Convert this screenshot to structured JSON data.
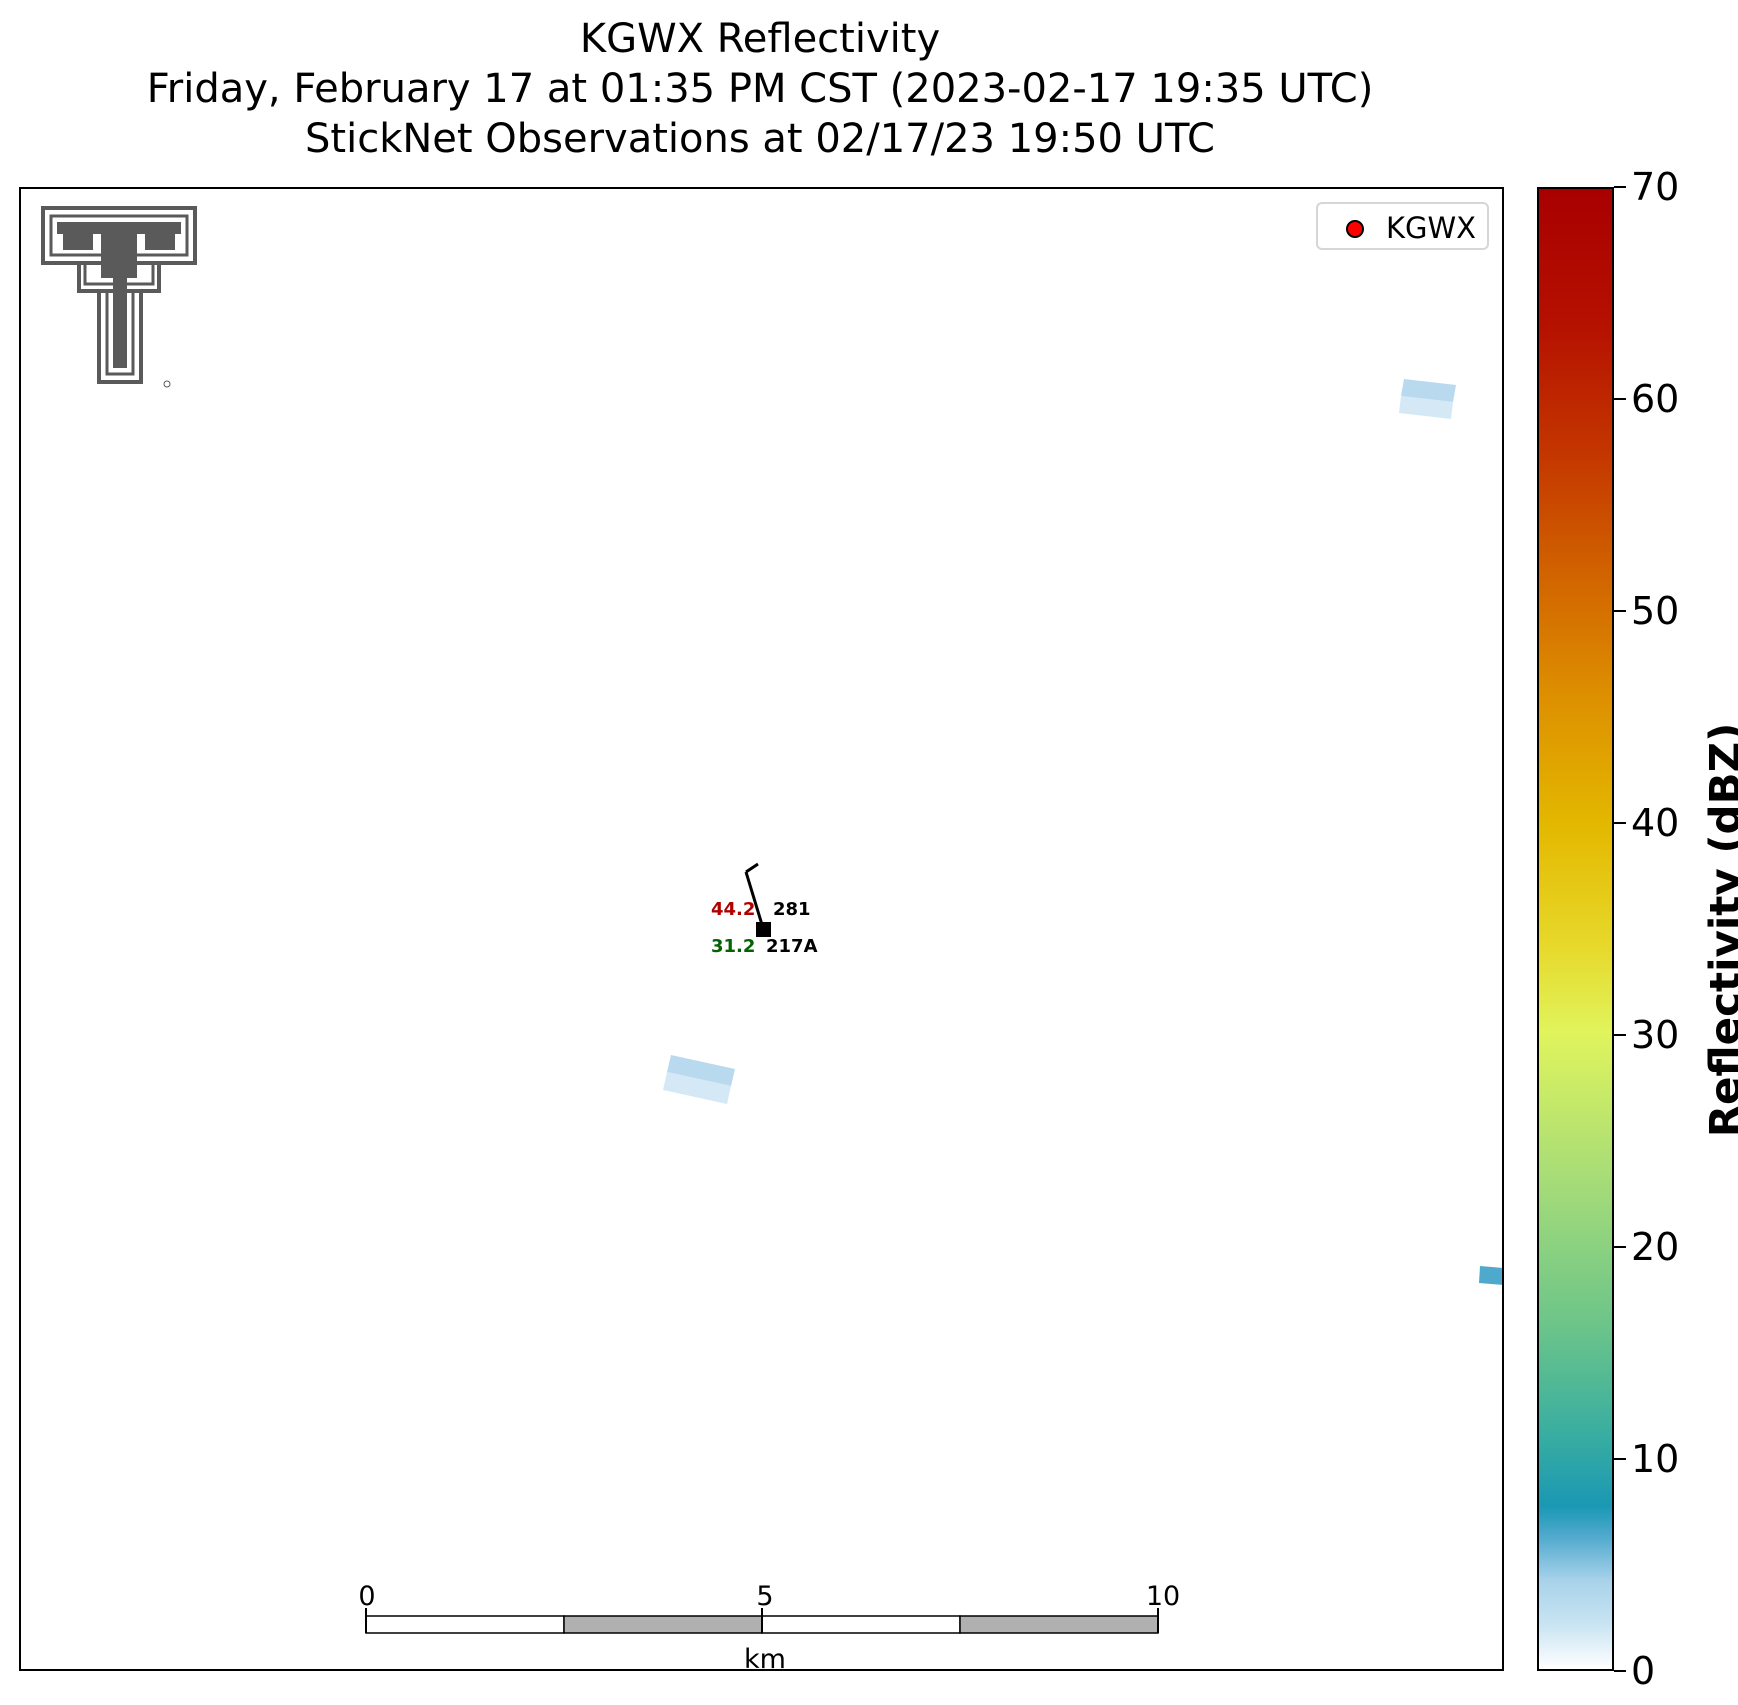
{
  "title": {
    "line1": "KGWX Reflectivity",
    "line2": "Friday, February 17 at 01:35 PM CST (2023-02-17 19:35 UTC)",
    "line3": "StickNet Observations at 02/17/23 19:50 UTC"
  },
  "legend": {
    "label": "KGWX",
    "marker_color": "#ff0000"
  },
  "station": {
    "temperature": "44.2",
    "dewpoint": "31.2",
    "wind_direction": "281",
    "id": "217A",
    "temperature_color": "#b00000",
    "dewpoint_color": "#006400"
  },
  "scale_bar": {
    "ticks": [
      "0",
      "5",
      "10"
    ],
    "unit": "km"
  },
  "colorbar": {
    "title": "Reflectivity (dBZ)",
    "ticks": [
      "70",
      "60",
      "50",
      "40",
      "30",
      "20",
      "10",
      "0"
    ],
    "range": [
      0,
      70
    ]
  },
  "logo": {
    "name": "texas-tech-double-t-logo",
    "color": "#5a5a5a"
  }
}
